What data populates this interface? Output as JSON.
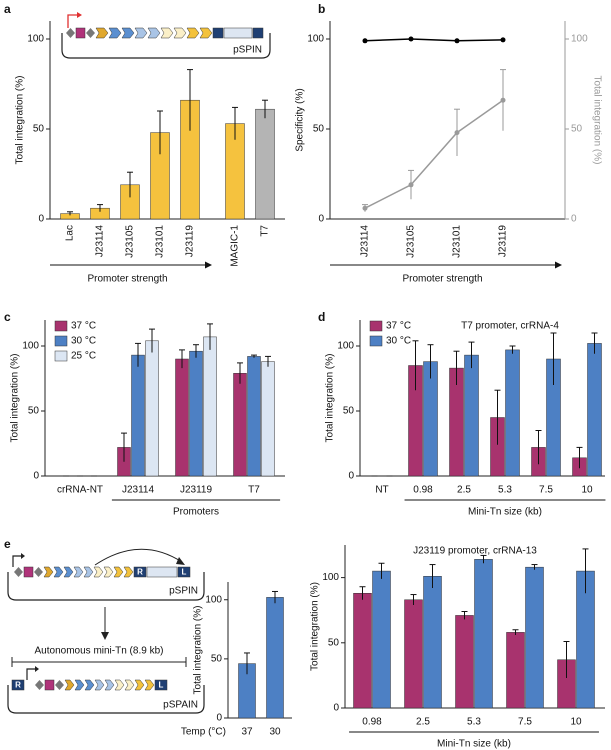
{
  "chart_data": [
    {
      "type": "bar",
      "panel": "a",
      "ylabel": "Total integration (%)",
      "xlabel": "Promoter strength",
      "categories": [
        "Lac",
        "J23114",
        "J23105",
        "J23101",
        "J23119",
        "MAGIC-1",
        "T7"
      ],
      "values": [
        3,
        6,
        19,
        48,
        66,
        53,
        61
      ],
      "errors": [
        1,
        2,
        7,
        12,
        17,
        9,
        5
      ],
      "colors": [
        "#f5c23e",
        "#f5c23e",
        "#f5c23e",
        "#f5c23e",
        "#f5c23e",
        "#f5c23e",
        "#b4b4b4"
      ],
      "ylim": [
        0,
        110
      ],
      "yticks": [
        0,
        50,
        100
      ]
    },
    {
      "type": "line",
      "panel": "b",
      "ylabel": "Specificity (%)",
      "y2label": "Total integration (%)",
      "xlabel": "Promoter strength",
      "categories": [
        "J23114",
        "J23105",
        "J23101",
        "J23119"
      ],
      "series": [
        {
          "color": "#000000",
          "values": [
            99,
            100,
            99,
            99.5
          ]
        },
        {
          "color": "#9a9a9a",
          "axis": "y2",
          "values": [
            6,
            19,
            48,
            66
          ],
          "errors": [
            2,
            8,
            13,
            17
          ]
        }
      ],
      "ylim": [
        0,
        110
      ],
      "yticks": [
        0,
        50,
        100
      ],
      "y2lim": [
        0,
        110
      ],
      "y2ticks": [
        0,
        50,
        100
      ]
    },
    {
      "type": "bar",
      "panel": "c",
      "ylabel": "Total integration (%)",
      "group_label": "Promoters",
      "legend": true,
      "categories": [
        "crRNA-NT",
        "J23114",
        "J23119",
        "T7"
      ],
      "series": [
        {
          "name": "37 °C",
          "color": "#a8336e",
          "values": [
            0,
            22,
            90,
            79
          ],
          "errors": [
            0,
            11,
            7,
            8
          ]
        },
        {
          "name": "30 °C",
          "color": "#4d80c4",
          "values": [
            0,
            93,
            96,
            92
          ],
          "errors": [
            0,
            9,
            5,
            1
          ]
        },
        {
          "name": "25 °C",
          "color": "#dce6f3",
          "values": [
            0,
            104,
            107,
            88
          ],
          "errors": [
            0,
            9,
            10,
            4
          ]
        }
      ],
      "ylim": [
        0,
        120
      ],
      "yticks": [
        0,
        50,
        100
      ]
    },
    {
      "type": "bar",
      "panel": "d",
      "ylabel": "Total integration (%)",
      "annotation": "T7 promoter, crRNA-4",
      "group_label": "Mini-Tn size (kb)",
      "legend": true,
      "categories": [
        "NT",
        "0.98",
        "2.5",
        "5.3",
        "7.5",
        "10"
      ],
      "series": [
        {
          "name": "37 °C",
          "color": "#a8336e",
          "values": [
            0,
            85,
            83,
            45,
            22,
            14
          ],
          "errors": [
            0,
            19,
            13,
            21,
            13,
            8
          ]
        },
        {
          "name": "30 °C",
          "color": "#4d80c4",
          "values": [
            0,
            88,
            93,
            97,
            90,
            102
          ],
          "errors": [
            0,
            13,
            10,
            3,
            20,
            8
          ]
        }
      ],
      "ylim": [
        0,
        120
      ],
      "yticks": [
        0,
        50,
        100
      ]
    },
    {
      "type": "bar",
      "panel": "e",
      "ylabel": "Total integration (%)",
      "xlabel": "Temp (°C)",
      "categories": [
        "37",
        "30"
      ],
      "values": [
        46,
        102
      ],
      "errors": [
        9,
        5
      ],
      "color": "#4d80c4",
      "ylim": [
        0,
        115
      ],
      "yticks": [
        0,
        50,
        100
      ]
    },
    {
      "type": "bar",
      "ylabel": "Total integration (%)",
      "annotation": "J23119 promoter, crRNA-13",
      "group_label": "Mini-Tn size (kb)",
      "categories": [
        "0.98",
        "2.5",
        "5.3",
        "7.5",
        "10"
      ],
      "series": [
        {
          "color": "#a8336e",
          "values": [
            88,
            83,
            71,
            58,
            37
          ],
          "errors": [
            5,
            4,
            3,
            2,
            14
          ]
        },
        {
          "color": "#4d80c4",
          "values": [
            105,
            101,
            114,
            108,
            105
          ],
          "errors": [
            6,
            9,
            3,
            2,
            17
          ]
        }
      ],
      "ylim": [
        0,
        125
      ],
      "yticks": [
        0,
        50,
        100
      ]
    }
  ],
  "diagrams": {
    "a_plasmid": "pSPIN",
    "e_top": {
      "plasmid": "pSPIN",
      "left_end": "R",
      "right_end": "L"
    },
    "e_bottom": {
      "label": "Autonomous mini-Tn (8.9 kb)",
      "plasmid": "pSPAIN",
      "left_end": "R",
      "right_end": "L"
    }
  }
}
